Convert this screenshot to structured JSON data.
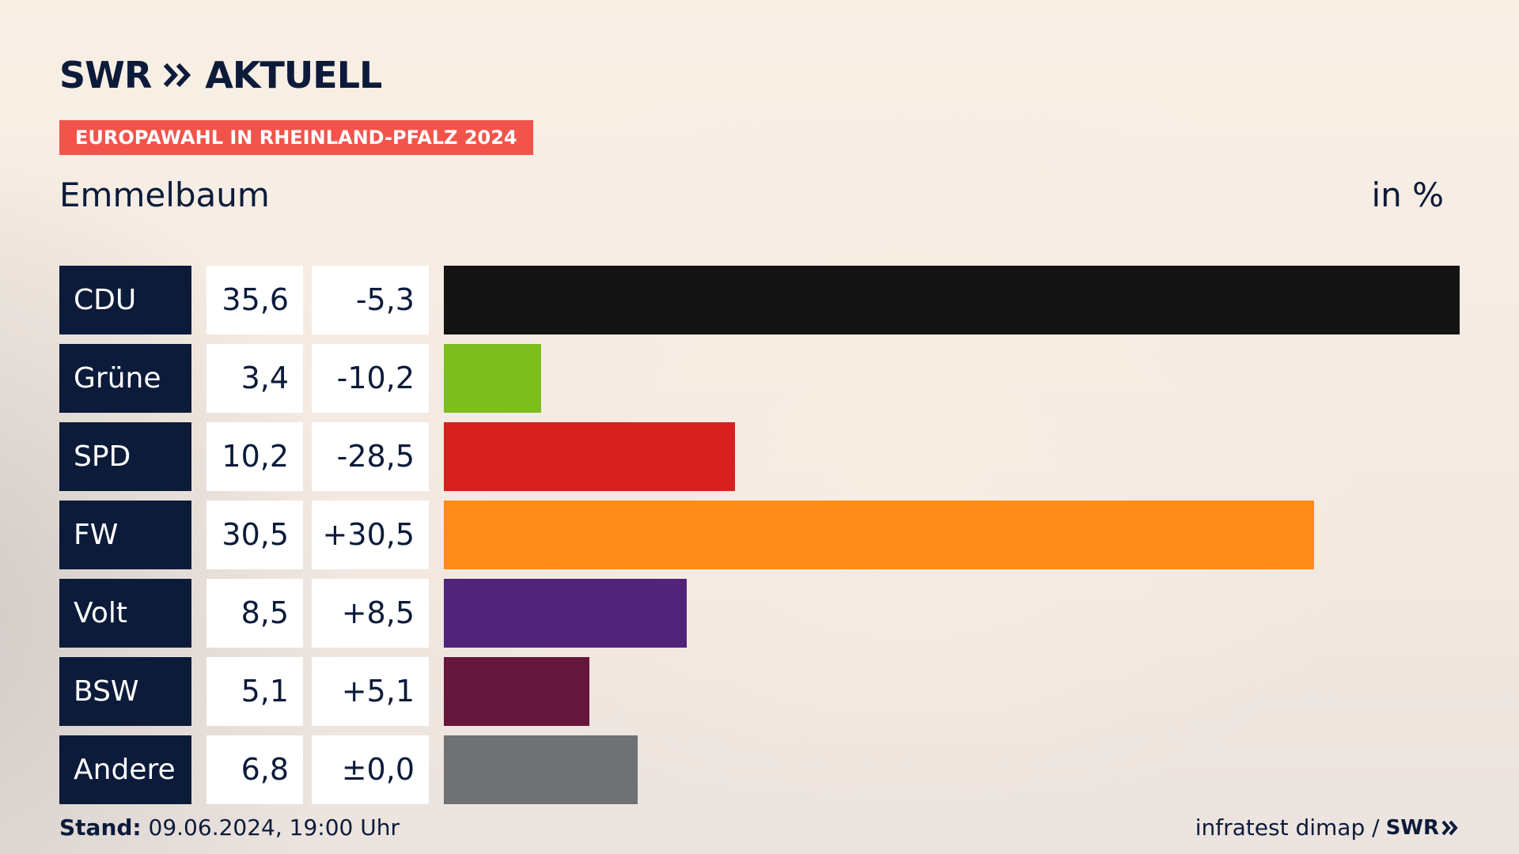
{
  "brand": {
    "logo_left": "SWR",
    "logo_right": "AKTUELL"
  },
  "badge": "EUROPAWAHL IN RHEINLAND-PFALZ 2024",
  "footer": {
    "stand_label": "Stand:",
    "stand_value": "09.06.2024, 19:00 Uhr",
    "source": "infratest dimap /",
    "source_logo": "SWR"
  },
  "chart_data": {
    "type": "bar",
    "orientation": "horizontal",
    "title": "Emmelbaum",
    "unit": "in %",
    "xlim": [
      0,
      35.6
    ],
    "categories": [
      "CDU",
      "Grüne",
      "SPD",
      "FW",
      "Volt",
      "BSW",
      "Andere"
    ],
    "values": [
      35.6,
      3.4,
      10.2,
      30.5,
      8.5,
      5.1,
      6.8
    ],
    "value_labels": [
      "35,6",
      "3,4",
      "10,2",
      "30,5",
      "8,5",
      "5,1",
      "6,8"
    ],
    "change_labels": [
      "-5,3",
      "-10,2",
      "-28,5",
      "+30,5",
      "+8,5",
      "+5,1",
      "±0,0"
    ],
    "colors": [
      "#141414",
      "#7dbd1e",
      "#d62020",
      "#ff8c19",
      "#512379",
      "#66173c",
      "#707173"
    ]
  }
}
